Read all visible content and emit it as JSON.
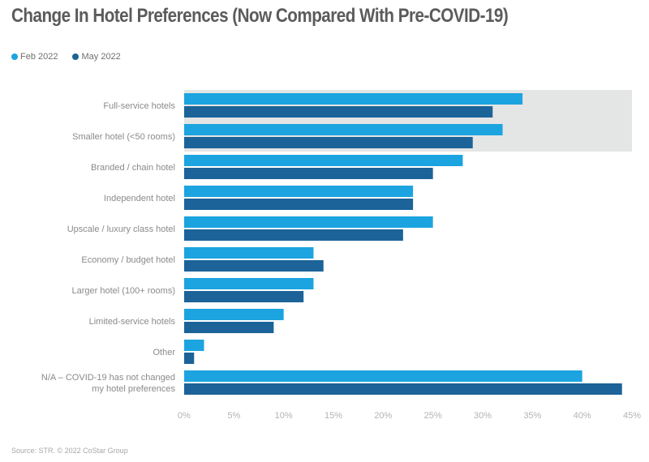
{
  "title": "Change In Hotel Preferences (Now Compared With Pre-COVID-19)",
  "legend": [
    {
      "label": "Feb 2022",
      "color": "#1ba4e0"
    },
    {
      "label": "May 2022",
      "color": "#1b6398"
    }
  ],
  "source": "Source: STR. © 2022 CoStar Group",
  "highlight": {
    "categories": [
      "Full-service hotels",
      "Smaller hotel (<50 rooms)"
    ],
    "color": "#e4e5e5"
  },
  "chart_data": {
    "type": "bar",
    "orientation": "horizontal",
    "title": "Change In Hotel Preferences (Now Compared With Pre-COVID-19)",
    "xlabel": "",
    "ylabel": "",
    "categories": [
      "Full-service hotels",
      "Smaller hotel (<50 rooms)",
      "Branded / chain hotel",
      "Independent hotel",
      "Upscale / luxury class hotel",
      "Economy / budget hotel",
      "Larger hotel (100+ rooms)",
      "Limited-service hotels",
      "Other",
      "N/A – COVID-19 has not changed my hotel preferences"
    ],
    "category_label_lines": [
      [
        "Full-service hotels"
      ],
      [
        "Smaller hotel (<50 rooms)"
      ],
      [
        "Branded / chain hotel"
      ],
      [
        "Independent hotel"
      ],
      [
        "Upscale / luxury class hotel"
      ],
      [
        "Economy / budget hotel"
      ],
      [
        "Larger hotel (100+ rooms)"
      ],
      [
        "Limited-service hotels"
      ],
      [
        "Other"
      ],
      [
        "N/A – COVID-19 has not changed",
        "my hotel preferences"
      ]
    ],
    "series": [
      {
        "name": "Feb 2022",
        "color": "#1ba4e0",
        "values": [
          34,
          32,
          28,
          23,
          25,
          13,
          13,
          10,
          2,
          40
        ]
      },
      {
        "name": "May 2022",
        "color": "#1b6398",
        "values": [
          31,
          29,
          25,
          23,
          22,
          14,
          12,
          9,
          1,
          44
        ]
      }
    ],
    "xlim": [
      0,
      45
    ],
    "xticks": [
      0,
      5,
      10,
      15,
      20,
      25,
      30,
      35,
      40,
      45
    ],
    "xtick_labels": [
      "0%",
      "5%",
      "10%",
      "15%",
      "20%",
      "25%",
      "30%",
      "35%",
      "40%",
      "45%"
    ],
    "grid": false,
    "legend_position": "top-left"
  }
}
